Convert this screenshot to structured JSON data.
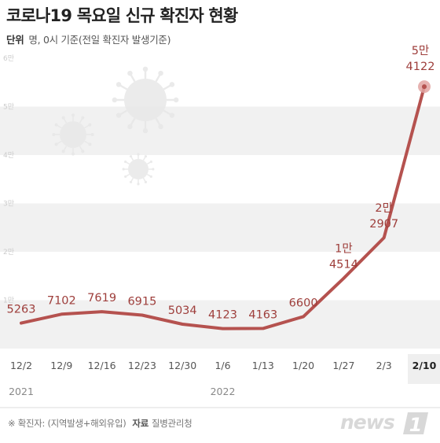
{
  "header": {
    "title": "코로나19 목요일 신규 확진자 현황",
    "unit_key": "단위",
    "unit_text": "명, 0시 기준(전일 확진자 발생기준)"
  },
  "footer": {
    "note": "※ 확진자: (지역발생+해외유입)",
    "source_key": "자료",
    "source_text": "질병관리청"
  },
  "logo": {
    "text": "news",
    "mark": "1"
  },
  "colors": {
    "line": "#b5524f",
    "band": "#f1f1f1",
    "label": "#9e3e3b",
    "axis_text": "#555555",
    "tick_text": "#cccccc"
  },
  "chart_data": {
    "type": "line",
    "title": "코로나19 목요일 신규 확진자 현황",
    "ylim": [
      0,
      60000
    ],
    "y_ticks": [
      {
        "value": 10000,
        "label": "1만"
      },
      {
        "value": 20000,
        "label": "2만"
      },
      {
        "value": 30000,
        "label": "3만"
      },
      {
        "value": 40000,
        "label": "4만"
      },
      {
        "value": 50000,
        "label": "5만"
      },
      {
        "value": 60000,
        "label": "6만"
      }
    ],
    "categories": [
      "12/2",
      "12/9",
      "12/16",
      "12/23",
      "12/30",
      "1/6",
      "1/13",
      "1/20",
      "1/27",
      "2/3",
      "2/10"
    ],
    "year_labels": [
      {
        "index": 0,
        "label": "2021"
      },
      {
        "index": 5,
        "label": "2022"
      }
    ],
    "values": [
      5263,
      7102,
      7619,
      6915,
      5034,
      4123,
      4163,
      6600,
      14514,
      22907,
      54122
    ],
    "data_labels": [
      [
        "5263"
      ],
      [
        "7102"
      ],
      [
        "7619"
      ],
      [
        "6915"
      ],
      [
        "5034"
      ],
      [
        "4123"
      ],
      [
        "4163"
      ],
      [
        "6600"
      ],
      [
        "1만",
        "4514"
      ],
      [
        "2만",
        "2907"
      ],
      [
        "5만",
        "4122"
      ]
    ],
    "highlight_index": 10
  }
}
